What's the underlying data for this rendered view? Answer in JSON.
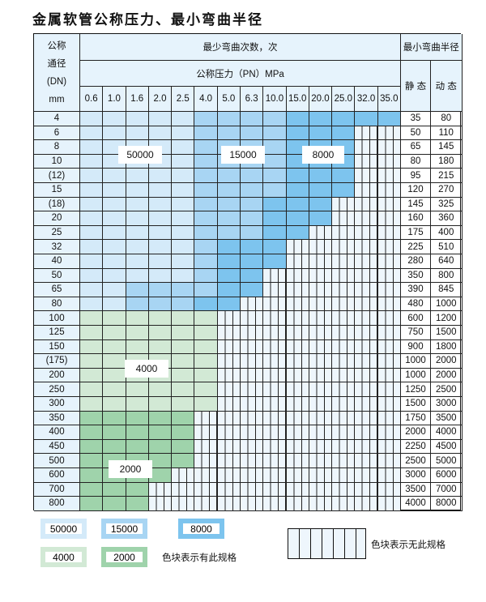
{
  "title": "金属软管公称压力、最小弯曲半径",
  "header": {
    "dn_label": [
      "公称",
      "通径",
      "(DN)",
      "mm"
    ],
    "cycles_label": "最少弯曲次数，次",
    "pressure_label": "公称压力（PN）MPa",
    "radius_label": "最小弯曲半径",
    "static_label": "静 态",
    "dynamic_label": "动 态",
    "pressures": [
      "0.6",
      "1.0",
      "1.6",
      "2.0",
      "2.5",
      "4.0",
      "5.0",
      "6.3",
      "10.0",
      "15.0",
      "20.0",
      "25.0",
      "32.0",
      "35.0"
    ]
  },
  "colors": {
    "50000": "#d4eaf9",
    "15000": "#a8d5f3",
    "8000": "#7dc4ee",
    "4000": "#d2e9d5",
    "2000": "#9fd3ab",
    "none": "#eef6fc"
  },
  "rows": [
    {
      "dn": "4",
      "static": "35",
      "dynamic": "80",
      "blocks": [
        [
          "50000",
          5
        ],
        [
          "15000",
          4
        ],
        [
          "8000",
          5
        ]
      ]
    },
    {
      "dn": "6",
      "static": "50",
      "dynamic": "110",
      "blocks": [
        [
          "50000",
          5
        ],
        [
          "15000",
          4
        ],
        [
          "8000",
          3
        ]
      ]
    },
    {
      "dn": "8",
      "static": "65",
      "dynamic": "145",
      "blocks": [
        [
          "50000",
          5
        ],
        [
          "15000",
          4
        ],
        [
          "8000",
          3
        ]
      ]
    },
    {
      "dn": "10",
      "static": "80",
      "dynamic": "180",
      "blocks": [
        [
          "50000",
          5
        ],
        [
          "15000",
          4
        ],
        [
          "8000",
          3
        ]
      ]
    },
    {
      "dn": "(12)",
      "static": "95",
      "dynamic": "215",
      "blocks": [
        [
          "50000",
          5
        ],
        [
          "15000",
          4
        ],
        [
          "8000",
          3
        ]
      ]
    },
    {
      "dn": "15",
      "static": "120",
      "dynamic": "270",
      "blocks": [
        [
          "50000",
          5
        ],
        [
          "15000",
          4
        ],
        [
          "8000",
          3
        ]
      ]
    },
    {
      "dn": "(18)",
      "static": "145",
      "dynamic": "325",
      "blocks": [
        [
          "50000",
          5
        ],
        [
          "15000",
          3
        ],
        [
          "8000",
          3
        ]
      ]
    },
    {
      "dn": "20",
      "static": "160",
      "dynamic": "360",
      "blocks": [
        [
          "50000",
          5
        ],
        [
          "15000",
          3
        ],
        [
          "8000",
          3
        ]
      ]
    },
    {
      "dn": "25",
      "static": "175",
      "dynamic": "400",
      "blocks": [
        [
          "50000",
          5
        ],
        [
          "15000",
          3
        ],
        [
          "8000",
          2
        ]
      ]
    },
    {
      "dn": "32",
      "static": "225",
      "dynamic": "510",
      "blocks": [
        [
          "50000",
          5
        ],
        [
          "15000",
          1
        ],
        [
          "8000",
          3
        ]
      ]
    },
    {
      "dn": "40",
      "static": "280",
      "dynamic": "640",
      "blocks": [
        [
          "50000",
          5
        ],
        [
          "15000",
          1
        ],
        [
          "8000",
          3
        ]
      ]
    },
    {
      "dn": "50",
      "static": "350",
      "dynamic": "800",
      "blocks": [
        [
          "50000",
          5
        ],
        [
          "15000",
          1
        ],
        [
          "8000",
          2
        ]
      ]
    },
    {
      "dn": "65",
      "static": "390",
      "dynamic": "845",
      "blocks": [
        [
          "50000",
          2
        ],
        [
          "15000",
          4
        ],
        [
          "8000",
          2
        ]
      ]
    },
    {
      "dn": "80",
      "static": "480",
      "dynamic": "1000",
      "blocks": [
        [
          "50000",
          2
        ],
        [
          "15000",
          3
        ],
        [
          "8000",
          2
        ]
      ]
    },
    {
      "dn": "100",
      "static": "600",
      "dynamic": "1200",
      "blocks": [
        [
          "4000",
          6
        ]
      ]
    },
    {
      "dn": "125",
      "static": "750",
      "dynamic": "1500",
      "blocks": [
        [
          "4000",
          6
        ]
      ]
    },
    {
      "dn": "150",
      "static": "900",
      "dynamic": "1800",
      "blocks": [
        [
          "4000",
          6
        ]
      ]
    },
    {
      "dn": "(175)",
      "static": "1000",
      "dynamic": "2000",
      "blocks": [
        [
          "4000",
          6
        ]
      ]
    },
    {
      "dn": "200",
      "static": "1000",
      "dynamic": "2000",
      "blocks": [
        [
          "4000",
          6
        ]
      ]
    },
    {
      "dn": "250",
      "static": "1250",
      "dynamic": "2500",
      "blocks": [
        [
          "4000",
          6
        ]
      ]
    },
    {
      "dn": "300",
      "static": "1500",
      "dynamic": "3000",
      "blocks": [
        [
          "4000",
          6
        ]
      ]
    },
    {
      "dn": "350",
      "static": "1750",
      "dynamic": "3500",
      "blocks": [
        [
          "2000",
          5
        ]
      ]
    },
    {
      "dn": "400",
      "static": "2000",
      "dynamic": "4000",
      "blocks": [
        [
          "2000",
          5
        ]
      ]
    },
    {
      "dn": "450",
      "static": "2250",
      "dynamic": "4500",
      "blocks": [
        [
          "2000",
          5
        ]
      ]
    },
    {
      "dn": "500",
      "static": "2500",
      "dynamic": "5000",
      "blocks": [
        [
          "2000",
          5
        ]
      ]
    },
    {
      "dn": "600",
      "static": "3000",
      "dynamic": "6000",
      "blocks": [
        [
          "2000",
          4
        ]
      ]
    },
    {
      "dn": "700",
      "static": "3500",
      "dynamic": "7000",
      "blocks": [
        [
          "2000",
          3
        ]
      ]
    },
    {
      "dn": "800",
      "static": "4000",
      "dynamic": "8000",
      "blocks": [
        [
          "2000",
          3
        ]
      ]
    }
  ],
  "block_labels": [
    "50000",
    "15000",
    "8000",
    "4000",
    "2000"
  ],
  "legend": {
    "items": [
      "50000",
      "15000",
      "8000",
      "4000",
      "2000"
    ],
    "has_spec_caption": "色块表示有此规格",
    "no_spec_caption": "色块表示无此规格"
  }
}
